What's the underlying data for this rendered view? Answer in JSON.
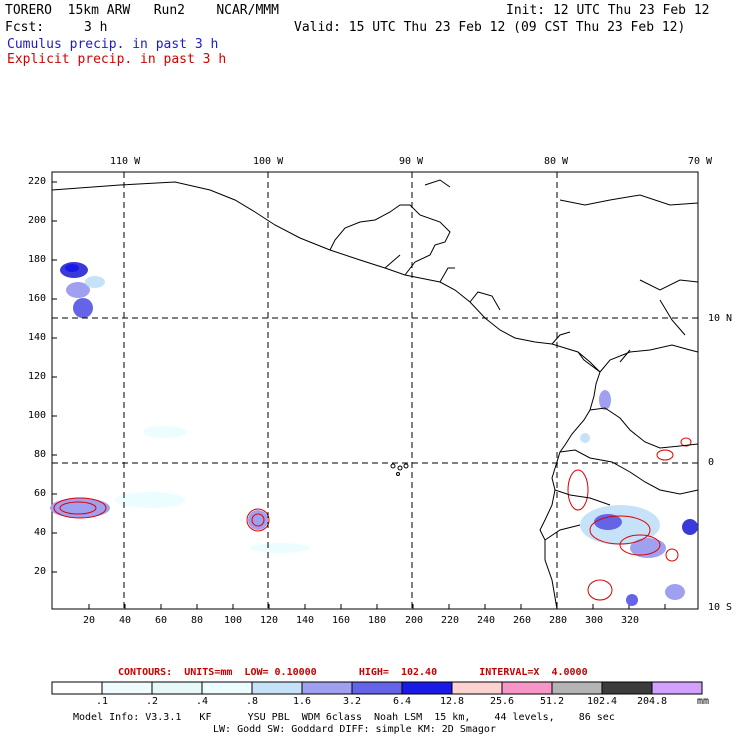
{
  "header": {
    "model": "TORERO  15km ARW   Run2    NCAR/MMM",
    "init": "Init: 12 UTC Thu 23 Feb 12",
    "fcst_label": "Fcst:",
    "fcst_value": "3 h",
    "valid": "Valid: 15 UTC Thu 23 Feb 12 (09 CST Thu 23 Feb 12)",
    "legend_cumulus": "Cumulus precip. in past 3 h",
    "legend_explicit": "Explicit precip. in past 3 h"
  },
  "map": {
    "lon_labels": [
      "110 W",
      "100 W",
      "90 W",
      "80 W",
      "70 W"
    ],
    "lat_labels": [
      "10 N",
      "0",
      "10 S"
    ],
    "y_ticks": [
      "220",
      "200",
      "180",
      "160",
      "140",
      "120",
      "100",
      "80",
      "60",
      "40",
      "20"
    ],
    "x_ticks": [
      "20",
      "40",
      "60",
      "80",
      "100",
      "120",
      "140",
      "160",
      "180",
      "200",
      "220",
      "240",
      "260",
      "280",
      "300",
      "320"
    ]
  },
  "contours_line": "CONTOURS:  UNITS=mm  LOW= 0.10000       HIGH=  102.40       INTERVAL=X  4.0000",
  "colorbar": {
    "labels": [
      ".1",
      ".2",
      ".4",
      ".8",
      "1.6",
      "3.2",
      "6.4",
      "12.8",
      "25.6",
      "51.2",
      "102.4",
      "204.8"
    ],
    "unit": "mm",
    "colors": [
      "#ffffff",
      "#f0fbff",
      "#e6f8f8",
      "#ebfdff",
      "#c6e2f8",
      "#a0a0f0",
      "#6464e8",
      "#1a1ae8",
      "#ffd2d2",
      "#f896c8",
      "#b4b4b4",
      "#3c3c3c",
      "#d2a0ff"
    ]
  },
  "footer": {
    "line1": "Model Info: V3.3.1   KF      YSU PBL  WDM 6class  Noah LSM  15 km,    44 levels,    86 sec",
    "line2": "LW: Godd SW: Goddard DIFF: simple KM: 2D Smagor"
  }
}
